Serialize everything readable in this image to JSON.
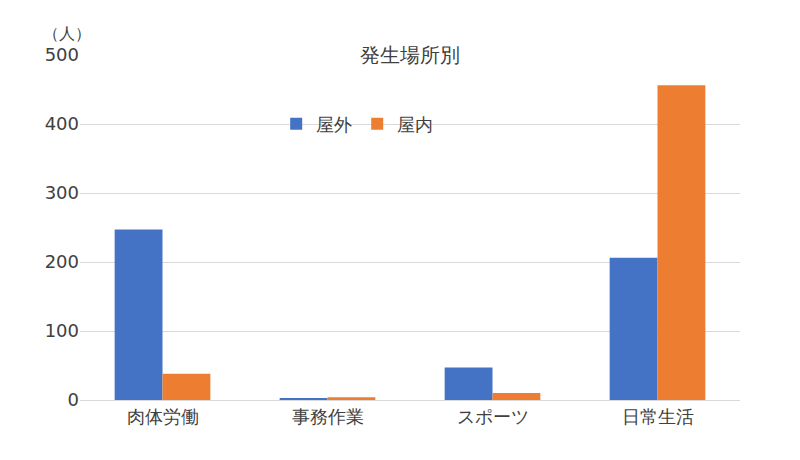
{
  "chart_data": {
    "type": "bar",
    "title": "発生場所別",
    "ylabel": "（人）",
    "categories": [
      "肉体労働",
      "事務作業",
      "スポーツ",
      "日常生活"
    ],
    "series": [
      {
        "name": "屋外",
        "color": "#4472c4",
        "values": [
          247,
          2,
          47,
          206
        ]
      },
      {
        "name": "屋内",
        "color": "#ed7d31",
        "values": [
          38,
          4,
          10,
          456
        ]
      }
    ],
    "ylim": [
      0,
      500
    ],
    "yticks": [
      0,
      100,
      200,
      300,
      400,
      500
    ],
    "grid": true,
    "legend": "top"
  }
}
